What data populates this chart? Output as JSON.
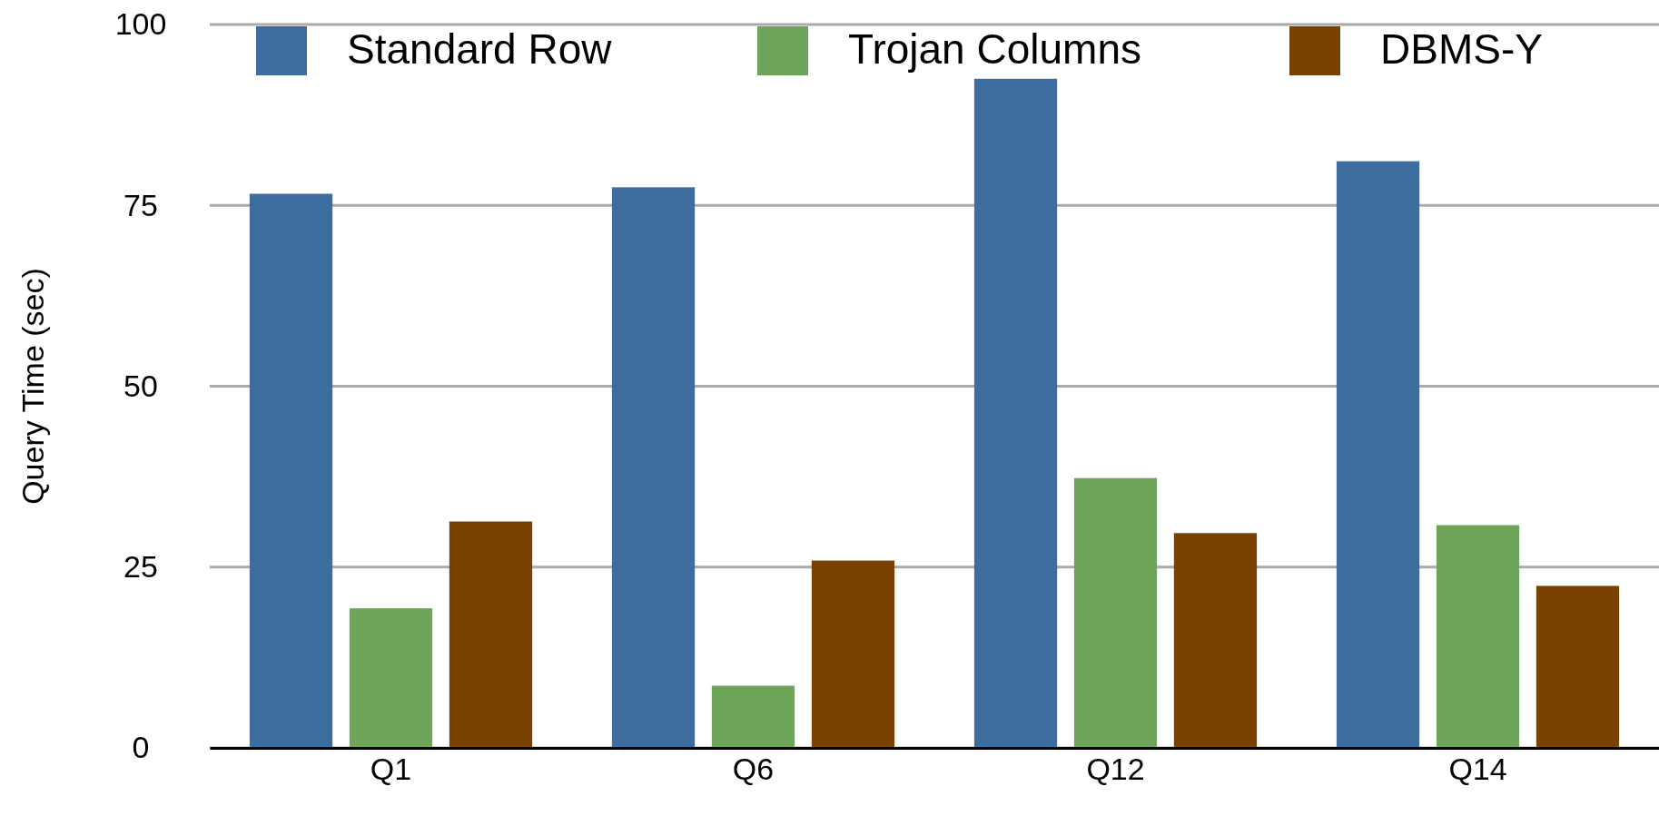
{
  "chart_data": {
    "type": "bar",
    "ylabel": "Query Time (sec)",
    "categories": [
      "Q1",
      "Q6",
      "Q12",
      "Q14"
    ],
    "series": [
      {
        "name": "Standard Row",
        "color": "#3d6d9e",
        "values": [
          76.6,
          77.5,
          92.5,
          81.1
        ]
      },
      {
        "name": "Trojan Columns",
        "color": "#6ea55a",
        "values": [
          19.3,
          8.6,
          37.3,
          30.8
        ]
      },
      {
        "name": "DBMS-Y",
        "color": "#7a4201",
        "values": [
          31.3,
          25.9,
          29.7,
          22.4
        ]
      }
    ],
    "ylim": [
      0,
      100
    ],
    "yticks": [
      0,
      25,
      50,
      75,
      100
    ],
    "grid": "y",
    "legend": "top"
  }
}
